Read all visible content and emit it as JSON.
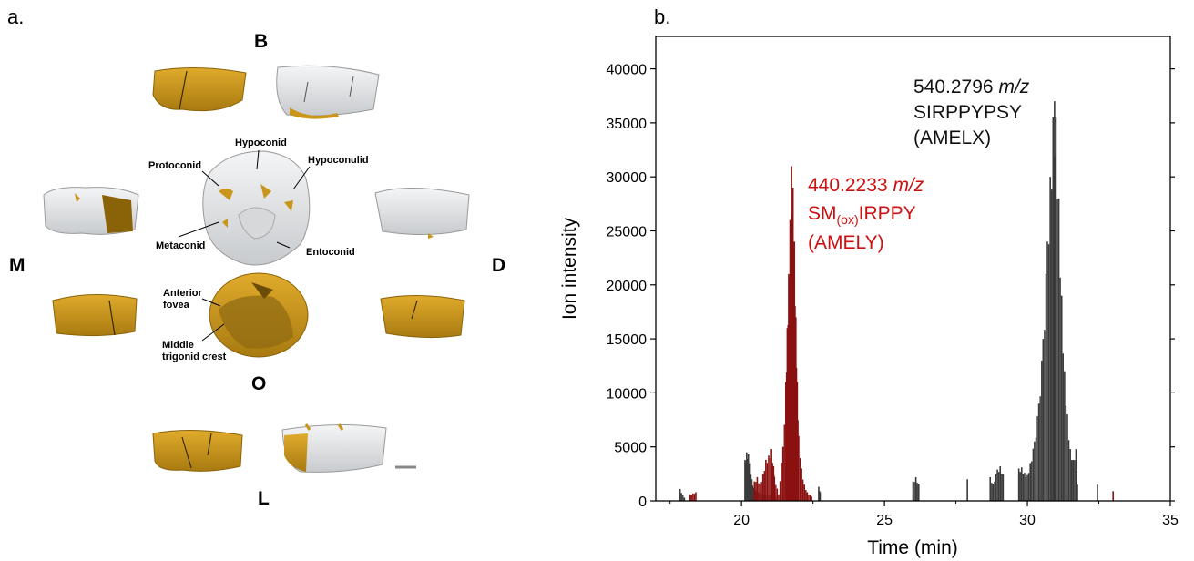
{
  "panel_a": {
    "label": "a.",
    "orientations": {
      "top": "B",
      "left": "M",
      "right": "D",
      "occlusal": "O",
      "bottom": "L"
    },
    "annotations": {
      "hypoconid": "Hypoconid",
      "protoconid": "Protoconid",
      "hypoconulid": "Hypoconulid",
      "metaconid": "Metaconid",
      "entoconid": "Entoconid",
      "anterior_fovea_1": "Anterior",
      "anterior_fovea_2": "fovea",
      "middle_trigonid_1": "Middle",
      "middle_trigonid_2": "trigonid crest"
    },
    "colors": {
      "enamel": "#c9951b",
      "dentine_surface": "#e4e6e8",
      "scale_bar": "#888888"
    }
  },
  "panel_b": {
    "label": "b.",
    "annotations": {
      "amelx": {
        "mz_value": "540.2796",
        "mz_unit": "m/z",
        "sequence": "SIRPPYPSY",
        "protein": "(AMELX)",
        "color": "#111111"
      },
      "amely": {
        "mz_value": "440.2233",
        "mz_unit": "m/z",
        "seq_prefix": "SM",
        "seq_sub": "(ox)",
        "seq_suffix": "IRPPY",
        "protein": "(AMELY)",
        "color": "#cc1111"
      }
    }
  },
  "chart_data": {
    "type": "area",
    "xlabel": "Time (min)",
    "ylabel": "Ion intensity",
    "xlim": [
      17,
      35
    ],
    "ylim": [
      0,
      43000
    ],
    "xticks": [
      20,
      25,
      30,
      35
    ],
    "yticks": [
      0,
      5000,
      10000,
      15000,
      20000,
      25000,
      30000,
      35000,
      40000
    ],
    "grid": false,
    "series": [
      {
        "name": "AMELX",
        "color": "#3a3a3a",
        "points": [
          [
            17.85,
            1100
          ],
          [
            18.0,
            300
          ],
          [
            20.12,
            3800
          ],
          [
            20.18,
            4500
          ],
          [
            20.24,
            4300
          ],
          [
            20.3,
            3500
          ],
          [
            20.36,
            2000
          ],
          [
            20.42,
            1200
          ],
          [
            20.6,
            800
          ],
          [
            20.8,
            600
          ],
          [
            21.0,
            500
          ],
          [
            21.2,
            400
          ],
          [
            21.45,
            500
          ],
          [
            22.7,
            1300
          ],
          [
            22.75,
            800
          ],
          [
            26.0,
            1800
          ],
          [
            26.1,
            2200
          ],
          [
            26.2,
            1600
          ],
          [
            27.9,
            2000
          ],
          [
            28.7,
            2200
          ],
          [
            28.8,
            1600
          ],
          [
            28.95,
            2900
          ],
          [
            29.05,
            3200
          ],
          [
            29.15,
            2500
          ],
          [
            29.7,
            3000
          ],
          [
            29.8,
            3100
          ],
          [
            29.9,
            2600
          ],
          [
            30.0,
            2400
          ],
          [
            30.1,
            3500
          ],
          [
            30.25,
            5500
          ],
          [
            30.4,
            9000
          ],
          [
            30.55,
            15000
          ],
          [
            30.7,
            24000
          ],
          [
            30.8,
            30000
          ],
          [
            30.9,
            35500
          ],
          [
            30.95,
            37000
          ],
          [
            31.0,
            35500
          ],
          [
            31.1,
            28000
          ],
          [
            31.2,
            19000
          ],
          [
            31.3,
            12000
          ],
          [
            31.4,
            8000
          ],
          [
            31.5,
            4800
          ],
          [
            31.6,
            3800
          ],
          [
            31.7,
            4800
          ],
          [
            31.75,
            1500
          ],
          [
            32.45,
            1500
          ]
        ]
      },
      {
        "name": "AMELY",
        "color": "#8b1010",
        "points": [
          [
            18.2,
            600
          ],
          [
            18.4,
            800
          ],
          [
            20.45,
            1800
          ],
          [
            20.55,
            2200
          ],
          [
            20.65,
            1500
          ],
          [
            20.75,
            2500
          ],
          [
            20.85,
            3800
          ],
          [
            20.95,
            4200
          ],
          [
            21.05,
            4800
          ],
          [
            21.12,
            3200
          ],
          [
            21.15,
            2200
          ],
          [
            21.3,
            600
          ],
          [
            21.45,
            5000
          ],
          [
            21.55,
            11000
          ],
          [
            21.6,
            16000
          ],
          [
            21.65,
            21000
          ],
          [
            21.7,
            26000
          ],
          [
            21.75,
            31000
          ],
          [
            21.8,
            29000
          ],
          [
            21.85,
            24000
          ],
          [
            21.9,
            17000
          ],
          [
            21.95,
            11000
          ],
          [
            22.0,
            6000
          ],
          [
            22.1,
            3000
          ],
          [
            22.2,
            1500
          ],
          [
            22.3,
            800
          ],
          [
            22.45,
            400
          ],
          [
            33.0,
            900
          ]
        ]
      }
    ]
  }
}
